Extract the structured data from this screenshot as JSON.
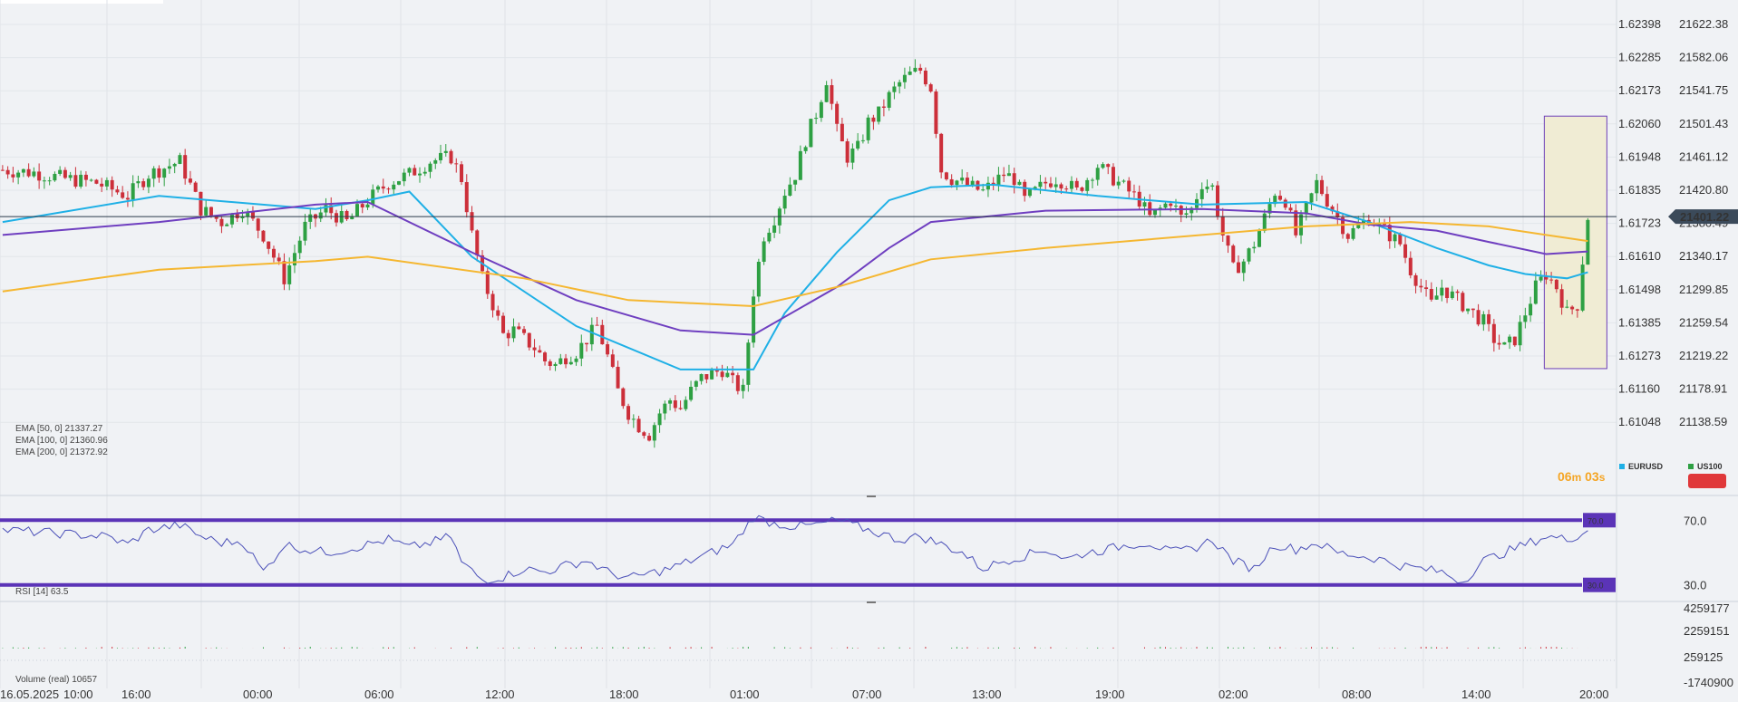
{
  "colors": {
    "background": "#f0f2f5",
    "bull": "#2ea043",
    "bear": "#cc2f3a",
    "ema50": "#1fb0e6",
    "ema100": "#6f3fc0",
    "ema200": "#f5b731",
    "rsi_line": "#4a4fb8",
    "rsi_band": "#5b34b7",
    "price_line": "#2b3a4a",
    "highlight_fill": "#f0ecd4",
    "highlight_stroke": "#6d3fb8",
    "countdown": "#f5a524",
    "legend_eurusd": "#1fb0e6",
    "legend_us100": "#2ea043",
    "us100_box": "#e0383a"
  },
  "chart_data": [
    {
      "type": "candlestick",
      "name": "US100",
      "y_axis_right_ticks": [
        "21622.38",
        "21582.06",
        "21541.75",
        "21501.43",
        "21461.12",
        "21420.80",
        "21380.49",
        "21340.17",
        "21299.85",
        "21259.54",
        "21219.22",
        "21178.91",
        "21138.59"
      ],
      "y_axis_left_ticks": [
        "1.62398",
        "1.62285",
        "1.62173",
        "1.62060",
        "1.61948",
        "1.61835",
        "1.61723",
        "1.61610",
        "1.61498",
        "1.61385",
        "1.61273",
        "1.61160",
        "1.61048"
      ],
      "ylim": [
        21118.4,
        21642.5
      ],
      "x_tick_labels": [
        "16.05.2025",
        "10:00",
        "16:00",
        "00:00",
        "06:00",
        "12:00",
        "18:00",
        "01:00",
        "07:00",
        "13:00",
        "19:00",
        "02:00",
        "08:00",
        "14:00",
        "20:00"
      ],
      "current_price": "21401.22",
      "close_path": [
        [
          0,
          21455
        ],
        [
          6,
          21452
        ],
        [
          12,
          21445
        ],
        [
          18,
          21440
        ],
        [
          24,
          21425
        ],
        [
          28,
          21450
        ],
        [
          34,
          21465
        ],
        [
          38,
          21410
        ],
        [
          42,
          21395
        ],
        [
          46,
          21410
        ],
        [
          50,
          21380
        ],
        [
          54,
          21330
        ],
        [
          58,
          21390
        ],
        [
          62,
          21410
        ],
        [
          66,
          21395
        ],
        [
          70,
          21420
        ],
        [
          74,
          21440
        ],
        [
          78,
          21450
        ],
        [
          82,
          21465
        ],
        [
          86,
          21470
        ],
        [
          88,
          21445
        ],
        [
          90,
          21380
        ],
        [
          92,
          21330
        ],
        [
          94,
          21300
        ],
        [
          96,
          21265
        ],
        [
          98,
          21270
        ],
        [
          100,
          21260
        ],
        [
          102,
          21250
        ],
        [
          104,
          21235
        ],
        [
          106,
          21230
        ],
        [
          108,
          21240
        ],
        [
          110,
          21245
        ],
        [
          112,
          21260
        ],
        [
          114,
          21275
        ],
        [
          116,
          21240
        ],
        [
          118,
          21200
        ],
        [
          120,
          21175
        ],
        [
          122,
          21160
        ],
        [
          124,
          21150
        ],
        [
          126,
          21175
        ],
        [
          128,
          21190
        ],
        [
          130,
          21180
        ],
        [
          132,
          21200
        ],
        [
          134,
          21215
        ],
        [
          136,
          21220
        ],
        [
          138,
          21225
        ],
        [
          140,
          21210
        ],
        [
          142,
          21200
        ],
        [
          144,
          21315
        ],
        [
          146,
          21380
        ],
        [
          148,
          21400
        ],
        [
          150,
          21430
        ],
        [
          152,
          21450
        ],
        [
          154,
          21490
        ],
        [
          156,
          21520
        ],
        [
          158,
          21560
        ],
        [
          160,
          21500
        ],
        [
          162,
          21470
        ],
        [
          164,
          21480
        ],
        [
          166,
          21510
        ],
        [
          168,
          21520
        ],
        [
          170,
          21540
        ],
        [
          172,
          21555
        ],
        [
          174,
          21565
        ],
        [
          176,
          21570
        ],
        [
          178,
          21550
        ],
        [
          180,
          21455
        ],
        [
          182,
          21445
        ],
        [
          184,
          21440
        ],
        [
          186,
          21435
        ],
        [
          188,
          21430
        ],
        [
          190,
          21440
        ],
        [
          192,
          21450
        ],
        [
          194,
          21445
        ],
        [
          196,
          21420
        ],
        [
          198,
          21430
        ],
        [
          200,
          21440
        ],
        [
          202,
          21445
        ],
        [
          204,
          21440
        ],
        [
          206,
          21430
        ],
        [
          208,
          21445
        ],
        [
          210,
          21460
        ],
        [
          212,
          21450
        ],
        [
          214,
          21440
        ],
        [
          216,
          21430
        ],
        [
          218,
          21420
        ],
        [
          220,
          21400
        ],
        [
          222,
          21410
        ],
        [
          224,
          21420
        ],
        [
          226,
          21400
        ],
        [
          228,
          21410
        ],
        [
          230,
          21440
        ],
        [
          232,
          21435
        ],
        [
          234,
          21380
        ],
        [
          236,
          21340
        ],
        [
          238,
          21350
        ],
        [
          240,
          21370
        ],
        [
          242,
          21400
        ],
        [
          244,
          21430
        ],
        [
          246,
          21420
        ],
        [
          248,
          21380
        ],
        [
          250,
          21410
        ],
        [
          252,
          21440
        ],
        [
          254,
          21420
        ],
        [
          256,
          21400
        ],
        [
          258,
          21380
        ],
        [
          260,
          21390
        ],
        [
          262,
          21400
        ],
        [
          264,
          21390
        ],
        [
          266,
          21380
        ],
        [
          268,
          21370
        ],
        [
          270,
          21340
        ],
        [
          272,
          21320
        ],
        [
          274,
          21300
        ],
        [
          276,
          21320
        ],
        [
          278,
          21310
        ],
        [
          280,
          21300
        ],
        [
          282,
          21290
        ],
        [
          284,
          21280
        ],
        [
          286,
          21260
        ],
        [
          288,
          21250
        ],
        [
          290,
          21260
        ],
        [
          292,
          21290
        ],
        [
          294,
          21320
        ],
        [
          296,
          21335
        ],
        [
          298,
          21320
        ],
        [
          300,
          21290
        ],
        [
          302,
          21300
        ],
        [
          304,
          21401
        ]
      ],
      "highlight_zone": {
        "start_bar": 296,
        "end_bar": 308,
        "price_top": 21517,
        "price_bottom": 21226
      }
    },
    {
      "type": "line",
      "name": "EMA overlays",
      "series": [
        {
          "name": "EMA [50,  0]",
          "value": "21337.27",
          "points": [
            [
              0,
              21395
            ],
            [
              30,
              21425
            ],
            [
              60,
              21410
            ],
            [
              70,
              21420
            ],
            [
              78,
              21430
            ],
            [
              90,
              21355
            ],
            [
              110,
              21275
            ],
            [
              130,
              21225
            ],
            [
              144,
              21225
            ],
            [
              150,
              21290
            ],
            [
              160,
              21360
            ],
            [
              170,
              21420
            ],
            [
              178,
              21435
            ],
            [
              190,
              21438
            ],
            [
              210,
              21425
            ],
            [
              230,
              21415
            ],
            [
              250,
              21418
            ],
            [
              262,
              21395
            ],
            [
              275,
              21365
            ],
            [
              285,
              21345
            ],
            [
              292,
              21335
            ],
            [
              300,
              21330
            ],
            [
              304,
              21337
            ]
          ]
        },
        {
          "name": "EMA [100,  0]",
          "value": "21360.96",
          "points": [
            [
              0,
              21380
            ],
            [
              30,
              21395
            ],
            [
              60,
              21415
            ],
            [
              70,
              21418
            ],
            [
              90,
              21360
            ],
            [
              110,
              21305
            ],
            [
              130,
              21270
            ],
            [
              144,
              21265
            ],
            [
              160,
              21320
            ],
            [
              170,
              21365
            ],
            [
              178,
              21395
            ],
            [
              200,
              21408
            ],
            [
              230,
              21410
            ],
            [
              250,
              21405
            ],
            [
              262,
              21392
            ],
            [
              275,
              21385
            ],
            [
              285,
              21372
            ],
            [
              296,
              21358
            ],
            [
              304,
              21361
            ]
          ]
        },
        {
          "name": "EMA [200,  0]",
          "value": "21372.92",
          "points": [
            [
              0,
              21315
            ],
            [
              30,
              21340
            ],
            [
              60,
              21350
            ],
            [
              70,
              21355
            ],
            [
              100,
              21330
            ],
            [
              120,
              21305
            ],
            [
              144,
              21298
            ],
            [
              160,
              21320
            ],
            [
              178,
              21352
            ],
            [
              200,
              21365
            ],
            [
              230,
              21380
            ],
            [
              250,
              21390
            ],
            [
              270,
              21395
            ],
            [
              285,
              21390
            ],
            [
              296,
              21380
            ],
            [
              304,
              21373
            ]
          ]
        }
      ]
    },
    {
      "type": "line",
      "name": "RSI [14]",
      "value": "63.5",
      "levels": [
        "70.0",
        "30.0"
      ],
      "y_ticks": [
        "70.0",
        "30.0"
      ],
      "ylim": [
        22,
        78
      ],
      "points": [
        [
          0,
          64
        ],
        [
          10,
          62
        ],
        [
          20,
          60
        ],
        [
          24,
          55
        ],
        [
          28,
          64
        ],
        [
          34,
          67
        ],
        [
          38,
          60
        ],
        [
          42,
          56
        ],
        [
          46,
          57
        ],
        [
          50,
          38
        ],
        [
          54,
          55
        ],
        [
          58,
          52
        ],
        [
          62,
          50
        ],
        [
          66,
          52
        ],
        [
          70,
          55
        ],
        [
          74,
          58
        ],
        [
          78,
          53
        ],
        [
          82,
          56
        ],
        [
          86,
          60
        ],
        [
          88,
          44
        ],
        [
          92,
          33
        ],
        [
          96,
          35
        ],
        [
          100,
          40
        ],
        [
          104,
          38
        ],
        [
          108,
          42
        ],
        [
          112,
          45
        ],
        [
          116,
          38
        ],
        [
          120,
          34
        ],
        [
          124,
          37
        ],
        [
          128,
          40
        ],
        [
          132,
          45
        ],
        [
          136,
          50
        ],
        [
          140,
          55
        ],
        [
          144,
          72
        ],
        [
          148,
          68
        ],
        [
          152,
          66
        ],
        [
          156,
          67
        ],
        [
          160,
          70
        ],
        [
          164,
          66
        ],
        [
          168,
          62
        ],
        [
          172,
          58
        ],
        [
          176,
          60
        ],
        [
          180,
          55
        ],
        [
          184,
          50
        ],
        [
          188,
          40
        ],
        [
          192,
          45
        ],
        [
          196,
          48
        ],
        [
          200,
          52
        ],
        [
          204,
          46
        ],
        [
          208,
          50
        ],
        [
          212,
          52
        ],
        [
          216,
          55
        ],
        [
          220,
          56
        ],
        [
          224,
          50
        ],
        [
          228,
          52
        ],
        [
          232,
          58
        ],
        [
          236,
          45
        ],
        [
          240,
          40
        ],
        [
          244,
          55
        ],
        [
          248,
          52
        ],
        [
          252,
          56
        ],
        [
          256,
          50
        ],
        [
          260,
          48
        ],
        [
          264,
          46
        ],
        [
          268,
          42
        ],
        [
          272,
          40
        ],
        [
          276,
          38
        ],
        [
          280,
          32
        ],
        [
          284,
          45
        ],
        [
          288,
          50
        ],
        [
          292,
          55
        ],
        [
          296,
          60
        ],
        [
          300,
          58
        ],
        [
          304,
          63.5
        ]
      ]
    },
    {
      "type": "bar",
      "name": "Volume (real)",
      "value": "10657",
      "y_ticks": [
        "4259177",
        "2259151",
        "259125",
        "-1740900"
      ],
      "ylim": [
        -1740900,
        4259177
      ]
    }
  ],
  "legend": {
    "ema": [
      {
        "label": "EMA [50,  0]",
        "value": "21337.27"
      },
      {
        "label": "EMA [100,  0]",
        "value": "21360.96"
      },
      {
        "label": "EMA [200,  0]",
        "value": "21372.92"
      }
    ],
    "rsi": {
      "label": "RSI [14]",
      "value": "63.5"
    },
    "volume": {
      "label": "Volume  (real)",
      "value": "10657"
    }
  },
  "countdown": {
    "minutes": "06",
    "m": "m",
    "seconds": "03",
    "s": "s"
  },
  "symbols": [
    "EURUSD",
    "US100"
  ]
}
